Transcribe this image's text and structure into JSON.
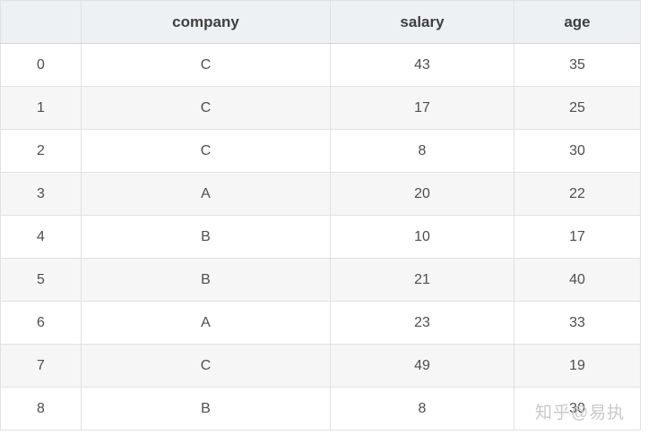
{
  "table": {
    "columns": [
      "",
      "company",
      "salary",
      "age"
    ],
    "column_keys": [
      "index",
      "company",
      "salary",
      "age"
    ],
    "rows": [
      {
        "index": "0",
        "company": "C",
        "salary": "43",
        "age": "35"
      },
      {
        "index": "1",
        "company": "C",
        "salary": "17",
        "age": "25"
      },
      {
        "index": "2",
        "company": "C",
        "salary": "8",
        "age": "30"
      },
      {
        "index": "3",
        "company": "A",
        "salary": "20",
        "age": "22"
      },
      {
        "index": "4",
        "company": "B",
        "salary": "10",
        "age": "17"
      },
      {
        "index": "5",
        "company": "B",
        "salary": "21",
        "age": "40"
      },
      {
        "index": "6",
        "company": "A",
        "salary": "23",
        "age": "33"
      },
      {
        "index": "7",
        "company": "C",
        "salary": "49",
        "age": "19"
      },
      {
        "index": "8",
        "company": "B",
        "salary": "8",
        "age": "30"
      }
    ]
  },
  "watermark": {
    "text": "知乎@易执"
  },
  "colors": {
    "header_bg": "#eef1f4",
    "stripe_bg": "#f6f6f7",
    "row_bg": "#ffffff",
    "border": "#e1e1e1",
    "header_border": "#d3d3d3",
    "header_text": "#3f3f3f",
    "cell_text": "#4e4e4e",
    "watermark_color": "#c9c9c9"
  }
}
